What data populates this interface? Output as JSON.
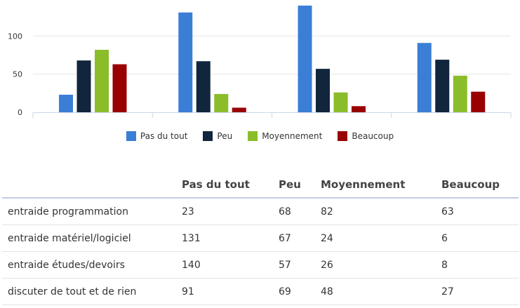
{
  "chart_data": {
    "type": "bar",
    "categories": [
      "entraide programmation",
      "entraide matériel/logiciel",
      "entraide études/devoirs",
      "discuter de tout et de rien"
    ],
    "series": [
      {
        "name": "Pas du tout",
        "color": "#3a7ed6",
        "values": [
          23,
          131,
          140,
          91
        ]
      },
      {
        "name": "Peu",
        "color": "#11253d",
        "values": [
          68,
          67,
          57,
          69
        ]
      },
      {
        "name": "Moyennement",
        "color": "#8bbd2a",
        "values": [
          82,
          24,
          26,
          48
        ]
      },
      {
        "name": "Beaucoup",
        "color": "#990000",
        "values": [
          63,
          6,
          8,
          27
        ]
      }
    ],
    "yticks": [
      0,
      50,
      100
    ],
    "ylim": [
      0,
      140
    ],
    "grid": true,
    "legend_position": "bottom"
  },
  "table": {
    "headers": [
      "",
      "Pas du tout",
      "Peu",
      "Moyennement",
      "Beaucoup"
    ],
    "rows": [
      [
        "entraide programmation",
        "23",
        "68",
        "82",
        "63"
      ],
      [
        "entraide matériel/logiciel",
        "131",
        "67",
        "24",
        "6"
      ],
      [
        "entraide études/devoirs",
        "140",
        "57",
        "26",
        "8"
      ],
      [
        "discuter de tout et de rien",
        "91",
        "69",
        "48",
        "27"
      ]
    ]
  }
}
